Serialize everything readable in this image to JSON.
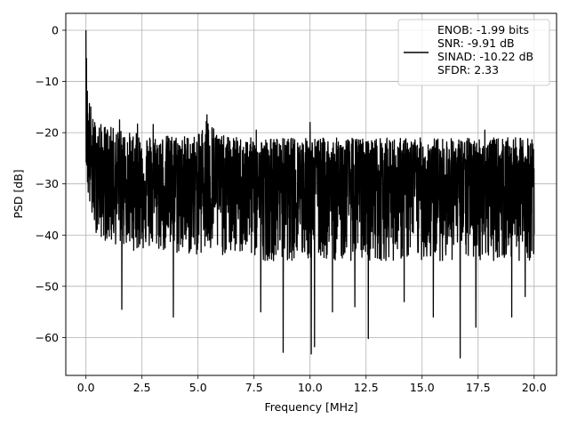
{
  "chart_data": {
    "type": "line",
    "xlabel": "Frequency [MHz]",
    "ylabel": "PSD [dB]",
    "xlim": [
      -0.9,
      21.0
    ],
    "ylim": [
      -67.4,
      3.3
    ],
    "xticks": [
      0.0,
      2.5,
      5.0,
      7.5,
      10.0,
      12.5,
      15.0,
      17.5,
      20.0
    ],
    "xtick_labels": [
      "0.0",
      "2.5",
      "5.0",
      "7.5",
      "10.0",
      "12.5",
      "15.0",
      "17.5",
      "20.0"
    ],
    "yticks": [
      0,
      -10,
      -20,
      -30,
      -40,
      -50,
      -60
    ],
    "ytick_labels": [
      "0",
      "−10",
      "−20",
      "−30",
      "−40",
      "−50",
      "−60"
    ],
    "grid": true,
    "legend": {
      "location": "top-right",
      "lines": [
        "ENOB: -1.99 bits",
        "SNR: -9.91 dB",
        "SINAD: -10.22 dB",
        "SFDR: 2.33"
      ]
    },
    "series": [
      {
        "color": "#000000",
        "x_range": [
          0.0,
          20.0
        ],
        "envelope": {
          "x": [
            0.0,
            0.05,
            0.1,
            0.2,
            0.3,
            0.5,
            0.8,
            1.2,
            1.6,
            2.0,
            3.0,
            4.0,
            5.0,
            5.4,
            6.0,
            7.0,
            8.0,
            9.0,
            10.0,
            11.0,
            12.0,
            13.0,
            14.0,
            15.0,
            16.0,
            17.0,
            18.0,
            19.0,
            20.0
          ],
          "upper": [
            0,
            -9,
            -12,
            -14,
            -17,
            -18,
            -18.5,
            -19,
            -19.5,
            -20,
            -20.5,
            -20.5,
            -20.5,
            -16.5,
            -20.5,
            -21,
            -21,
            -21,
            -21,
            -21,
            -21,
            -21,
            -21,
            -21,
            -21,
            -21,
            -21,
            -21,
            -21
          ],
          "center": [
            -15,
            -22,
            -24,
            -26,
            -27.5,
            -28.5,
            -29,
            -29.5,
            -29.5,
            -30,
            -30,
            -30,
            -30,
            -30,
            -30,
            -30,
            -30,
            -30,
            -30,
            -30,
            -30,
            -30,
            -30,
            -30,
            -30,
            -30,
            -30,
            -30,
            -30
          ],
          "lower": [
            -25,
            -30,
            -33,
            -36,
            -38,
            -40,
            -41,
            -42,
            -42,
            -43,
            -43,
            -44,
            -44,
            -44,
            -44,
            -44,
            -45,
            -45,
            -45,
            -45,
            -45,
            -45,
            -45,
            -45,
            -45,
            -45,
            -45,
            -45,
            -45
          ]
        },
        "deep_dips": [
          {
            "x": 1.6,
            "y": -54.5
          },
          {
            "x": 3.9,
            "y": -56.0
          },
          {
            "x": 5.4,
            "y": -57.0
          },
          {
            "x": 7.8,
            "y": -55.0
          },
          {
            "x": 8.8,
            "y": -62.9
          },
          {
            "x": 10.05,
            "y": -63.2
          },
          {
            "x": 10.2,
            "y": -61.8
          },
          {
            "x": 11.0,
            "y": -55.0
          },
          {
            "x": 12.0,
            "y": -54.0
          },
          {
            "x": 12.6,
            "y": -60.2
          },
          {
            "x": 14.2,
            "y": -53.0
          },
          {
            "x": 15.5,
            "y": -56.0
          },
          {
            "x": 16.7,
            "y": -64.0
          },
          {
            "x": 17.4,
            "y": -58.0
          },
          {
            "x": 19.0,
            "y": -56.0
          },
          {
            "x": 19.6,
            "y": -52.0
          }
        ],
        "peaks": [
          {
            "x": 0.0,
            "y": 0.0
          },
          {
            "x": 5.4,
            "y": -16.5
          },
          {
            "x": 10.0,
            "y": -18.0
          },
          {
            "x": 7.6,
            "y": -19.5
          },
          {
            "x": 17.8,
            "y": -19.5
          },
          {
            "x": 1.5,
            "y": -17.5
          },
          {
            "x": 2.3,
            "y": -18.3
          },
          {
            "x": 3.0,
            "y": -18.4
          }
        ]
      }
    ]
  }
}
